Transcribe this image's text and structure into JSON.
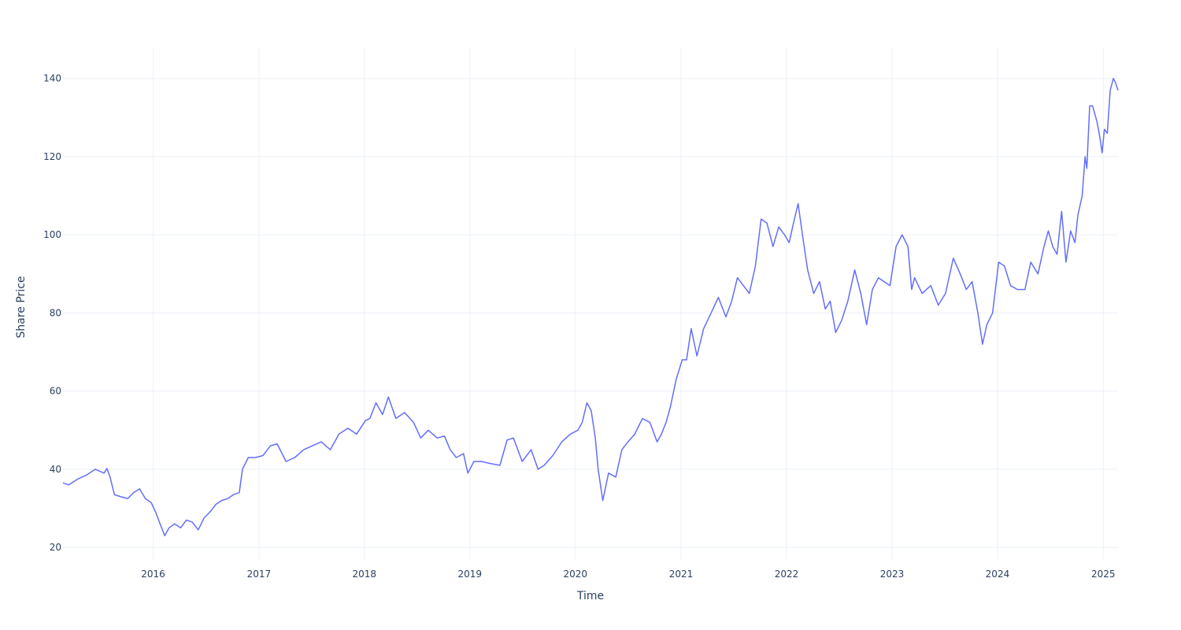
{
  "chart_data": {
    "type": "line",
    "title": "",
    "xlabel": "Time",
    "ylabel": "Share Price",
    "x_ticks": [
      "2016",
      "2017",
      "2018",
      "2019",
      "2020",
      "2021",
      "2022",
      "2023",
      "2024",
      "2025"
    ],
    "y_ticks": [
      "20",
      "40",
      "60",
      "80",
      "100",
      "120",
      "140"
    ],
    "xlim": [
      "2015-02-23",
      "2025-02-21"
    ],
    "ylim": [
      17,
      148
    ],
    "grid": true,
    "line_color": "#636efa",
    "series": [
      {
        "x": [
          "2015-02-23",
          "2015-03-15",
          "2015-04-15",
          "2015-05-15",
          "2015-06-15",
          "2015-07-15",
          "2015-07-25",
          "2015-08-05",
          "2015-08-20",
          "2015-09-10",
          "2015-10-05",
          "2015-10-25",
          "2015-11-15",
          "2015-12-05",
          "2015-12-25",
          "2016-01-10",
          "2016-01-25",
          "2016-02-10",
          "2016-02-25",
          "2016-03-15",
          "2016-04-05",
          "2016-04-25",
          "2016-05-15",
          "2016-06-05",
          "2016-06-25",
          "2016-07-15",
          "2016-08-05",
          "2016-08-25",
          "2016-09-15",
          "2016-10-05",
          "2016-10-25",
          "2016-11-05",
          "2016-11-25",
          "2016-12-20",
          "2017-01-15",
          "2017-02-10",
          "2017-03-05",
          "2017-04-05",
          "2017-05-05",
          "2017-06-05",
          "2017-07-05",
          "2017-08-05",
          "2017-09-05",
          "2017-10-05",
          "2017-11-05",
          "2017-12-05",
          "2018-01-05",
          "2018-01-20",
          "2018-02-10",
          "2018-03-05",
          "2018-03-25",
          "2018-04-20",
          "2018-05-20",
          "2018-06-20",
          "2018-07-15",
          "2018-08-10",
          "2018-09-10",
          "2018-10-05",
          "2018-10-25",
          "2018-11-15",
          "2018-12-10",
          "2018-12-25",
          "2019-01-15",
          "2019-02-10",
          "2019-03-10",
          "2019-04-15",
          "2019-05-10",
          "2019-06-01",
          "2019-07-01",
          "2019-08-01",
          "2019-08-25",
          "2019-09-15",
          "2019-10-15",
          "2019-11-15",
          "2019-12-15",
          "2020-01-10",
          "2020-01-25",
          "2020-02-10",
          "2020-02-25",
          "2020-03-10",
          "2020-03-20",
          "2020-04-05",
          "2020-04-25",
          "2020-05-20",
          "2020-06-10",
          "2020-07-01",
          "2020-07-25",
          "2020-08-20",
          "2020-09-15",
          "2020-10-10",
          "2020-10-25",
          "2020-11-10",
          "2020-11-25",
          "2020-12-15",
          "2021-01-05",
          "2021-01-20",
          "2021-02-05",
          "2021-02-25",
          "2021-03-20",
          "2021-04-15",
          "2021-05-10",
          "2021-06-05",
          "2021-06-25",
          "2021-07-15",
          "2021-08-05",
          "2021-08-25",
          "2021-09-15",
          "2021-10-05",
          "2021-10-25",
          "2021-11-15",
          "2021-12-05",
          "2021-12-25",
          "2022-01-10",
          "2022-01-25",
          "2022-02-10",
          "2022-02-25",
          "2022-03-15",
          "2022-04-05",
          "2022-04-25",
          "2022-05-15",
          "2022-06-01",
          "2022-06-20",
          "2022-07-10",
          "2022-08-01",
          "2022-08-25",
          "2022-09-15",
          "2022-10-05",
          "2022-10-25",
          "2022-11-15",
          "2022-12-05",
          "2022-12-25",
          "2023-01-15",
          "2023-02-05",
          "2023-02-25",
          "2023-03-10",
          "2023-03-20",
          "2023-04-15",
          "2023-05-15",
          "2023-06-10",
          "2023-07-05",
          "2023-08-01",
          "2023-08-25",
          "2023-09-15",
          "2023-10-05",
          "2023-10-25",
          "2023-11-10",
          "2023-11-25",
          "2023-12-15",
          "2024-01-05",
          "2024-01-25",
          "2024-02-15",
          "2024-03-10",
          "2024-04-05",
          "2024-04-25",
          "2024-05-20",
          "2024-06-10",
          "2024-06-25",
          "2024-07-10",
          "2024-07-25",
          "2024-08-10",
          "2024-08-25",
          "2024-09-10",
          "2024-09-25",
          "2024-10-05",
          "2024-10-20",
          "2024-10-30",
          "2024-11-05",
          "2024-11-15",
          "2024-11-25",
          "2024-12-10",
          "2024-12-20",
          "2024-12-28",
          "2025-01-05",
          "2025-01-15",
          "2025-01-25",
          "2025-02-05",
          "2025-02-12",
          "2025-02-21"
        ],
        "y": [
          36.5,
          36.0,
          37.5,
          38.5,
          40.0,
          39.0,
          40.2,
          38.0,
          33.5,
          33.0,
          32.5,
          34.0,
          35.0,
          32.5,
          31.5,
          29.0,
          26.0,
          23.0,
          25.0,
          26.0,
          25.0,
          27.0,
          26.5,
          24.5,
          27.5,
          29.0,
          31.0,
          32.0,
          32.5,
          33.5,
          34.0,
          40.0,
          43.0,
          43.0,
          43.5,
          46.0,
          46.5,
          42.0,
          43.0,
          45.0,
          46.0,
          47.0,
          45.0,
          49.0,
          50.5,
          49.0,
          52.5,
          53.0,
          57.0,
          54.0,
          58.5,
          53.0,
          54.5,
          52.0,
          48.0,
          50.0,
          48.0,
          48.5,
          45.0,
          43.0,
          44.0,
          39.0,
          42.0,
          42.0,
          41.5,
          41.0,
          47.5,
          48.0,
          42.0,
          45.0,
          40.0,
          41.0,
          43.5,
          47.0,
          49.0,
          50.0,
          52.0,
          57.0,
          55.0,
          48.0,
          40.0,
          32.0,
          39.0,
          38.0,
          45.0,
          47.0,
          49.0,
          53.0,
          52.0,
          47.0,
          49.0,
          52.0,
          56.0,
          63.0,
          68.0,
          68.0,
          76.0,
          69.0,
          76.0,
          80.0,
          84.0,
          79.0,
          83.0,
          89.0,
          87.0,
          85.0,
          92.0,
          104.0,
          103.0,
          97.0,
          102.0,
          100.0,
          98.0,
          103.0,
          108.0,
          100.0,
          91.0,
          85.0,
          88.0,
          81.0,
          83.0,
          75.0,
          78.0,
          83.0,
          91.0,
          85.0,
          77.0,
          86.0,
          89.0,
          88.0,
          87.0,
          97.0,
          100.0,
          97.0,
          86.0,
          89.0,
          85.0,
          87.0,
          82.0,
          85.0,
          94.0,
          90.0,
          86.0,
          88.0,
          80.0,
          72.0,
          77.0,
          80.0,
          93.0,
          92.0,
          87.0,
          86.0,
          86.0,
          93.0,
          90.0,
          97.0,
          101.0,
          97.0,
          95.0,
          106.0,
          93.0,
          101.0,
          98.0,
          105.0,
          110.0,
          120.0,
          117.0,
          133.0,
          133.0,
          129.0,
          125.0,
          121.0,
          127.0,
          126.0,
          137.0,
          140.0,
          139.0,
          137.0
        ]
      }
    ]
  }
}
